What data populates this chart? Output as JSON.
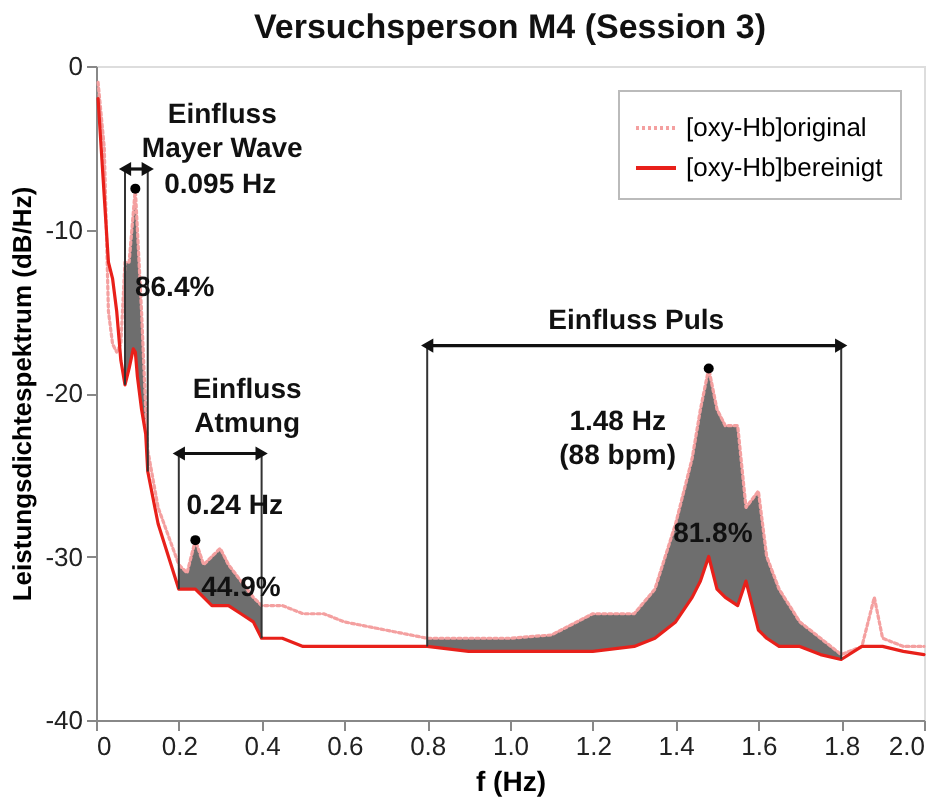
{
  "chart_data": {
    "type": "line",
    "title": "Versuchsperson M4 (Session 3)",
    "xlabel": "f (Hz)",
    "ylabel": "Leistungsdichtespektrum (dB/Hz)",
    "xlim": [
      0,
      2
    ],
    "ylim": [
      -40,
      0
    ],
    "xticks": [
      0,
      0.2,
      0.4,
      0.6,
      0.8,
      {
        "value": 1,
        "label": "1.0"
      },
      1.2,
      1.4,
      1.6,
      1.8,
      {
        "value": 2,
        "label": "2.0"
      }
    ],
    "yticks": [
      -40,
      -30,
      -20,
      -10,
      0
    ],
    "grid": false,
    "legend": "top right",
    "series": [
      {
        "name": "[oxy-Hb]original",
        "line_style": "dotted",
        "color": "#f4a0a0",
        "x": [
          0.005,
          0.02,
          0.03,
          0.04,
          0.05,
          0.06,
          0.07,
          0.08,
          0.09,
          0.095,
          0.1,
          0.11,
          0.12,
          0.125,
          0.15,
          0.2,
          0.22,
          0.24,
          0.26,
          0.28,
          0.3,
          0.32,
          0.35,
          0.38,
          0.4,
          0.45,
          0.5,
          0.55,
          0.6,
          0.7,
          0.8,
          0.9,
          1.0,
          1.1,
          1.2,
          1.3,
          1.35,
          1.4,
          1.44,
          1.46,
          1.48,
          1.5,
          1.52,
          1.55,
          1.57,
          1.6,
          1.62,
          1.65,
          1.7,
          1.75,
          1.8,
          1.85,
          1.88,
          1.9,
          1.95,
          2.0
        ],
        "values": [
          -1,
          -5,
          -15,
          -17,
          -17.5,
          -17,
          -12,
          -12,
          -9,
          -7.5,
          -10,
          -15,
          -21,
          -23.5,
          -27,
          -30.5,
          -31,
          -29,
          -30.5,
          -30,
          -29.5,
          -30.5,
          -31.5,
          -32.5,
          -33,
          -33,
          -33.5,
          -33.5,
          -34,
          -34.5,
          -35,
          -35,
          -35,
          -34.8,
          -33.5,
          -33.5,
          -32,
          -28,
          -24,
          -21,
          -18.5,
          -21,
          -22,
          -22,
          -27,
          -26,
          -30,
          -32,
          -34,
          -35,
          -36,
          -35.5,
          -32.5,
          -35,
          -35.5,
          -35.5
        ]
      },
      {
        "name": "[oxy-Hb]bereinigt",
        "line_style": "solid",
        "color": "#e8201a",
        "x": [
          0.005,
          0.02,
          0.03,
          0.04,
          0.05,
          0.06,
          0.07,
          0.08,
          0.09,
          0.095,
          0.1,
          0.11,
          0.12,
          0.125,
          0.15,
          0.2,
          0.22,
          0.24,
          0.26,
          0.28,
          0.3,
          0.32,
          0.35,
          0.38,
          0.4,
          0.45,
          0.5,
          0.55,
          0.6,
          0.7,
          0.8,
          0.9,
          1.0,
          1.1,
          1.2,
          1.3,
          1.35,
          1.4,
          1.44,
          1.46,
          1.48,
          1.5,
          1.52,
          1.55,
          1.57,
          1.6,
          1.62,
          1.65,
          1.7,
          1.75,
          1.8,
          1.85,
          1.88,
          1.9,
          1.95,
          2.0
        ],
        "values": [
          -2,
          -8,
          -12,
          -13,
          -15,
          -18,
          -19.5,
          -18.5,
          -17.3,
          -17.5,
          -19,
          -21,
          -22.5,
          -24.8,
          -28,
          -32,
          -32,
          -32,
          -32.5,
          -33,
          -33,
          -33,
          -33.5,
          -34,
          -35,
          -35,
          -35.5,
          -35.5,
          -35.5,
          -35.5,
          -35.5,
          -35.8,
          -35.8,
          -35.8,
          -35.8,
          -35.5,
          -35,
          -34,
          -32.5,
          -31.5,
          -30,
          -32,
          -32.5,
          -33,
          -31.5,
          -34.5,
          -35,
          -35.5,
          -35.5,
          -36,
          -36.3,
          -35.5,
          -35.5,
          -35.5,
          -35.8,
          -36
        ],
        "lower": [
          null,
          null,
          null,
          null,
          null,
          null,
          -19.5,
          -18.5,
          -17.3,
          -17.5,
          -19,
          -21,
          -22.5,
          -24.8,
          null,
          -32,
          -32,
          -32,
          -32.5,
          -33,
          -33,
          -33,
          -33.5,
          -34,
          -35,
          null,
          null,
          null,
          null,
          null,
          -35.5,
          -35.8,
          -35.8,
          -35.8,
          -35.8,
          -35.5,
          -35,
          -34,
          -32.5,
          -31.5,
          -30,
          -32,
          -32.5,
          -33,
          -31.5,
          -34.5,
          -35,
          -35.5,
          -35.5,
          -36,
          -36.3,
          null,
          null,
          null,
          null,
          null
        ],
        "upper": [
          null,
          null,
          null,
          null,
          null,
          null,
          -12,
          -12,
          -9,
          -7.5,
          -10,
          -15,
          -21,
          -23.5,
          null,
          -30.5,
          -31,
          -29,
          -30.5,
          -30,
          -29.5,
          -30.5,
          -31.5,
          -32.5,
          -33,
          null,
          null,
          null,
          null,
          null,
          -35,
          -35,
          -35,
          -34.8,
          -33.5,
          -33.5,
          -32,
          -28,
          -24,
          -21,
          -18.5,
          -21,
          -22,
          -22,
          -27,
          -26,
          -30,
          -32,
          -34,
          -35,
          -36,
          null,
          null,
          null,
          null,
          null
        ]
      },
      {
        "type": "scatter",
        "color": "#000000",
        "marker": "circle",
        "x": [
          0.095,
          0.24,
          1.48
        ],
        "values": [
          -7.5,
          -29,
          -18.5
        ]
      }
    ],
    "annotations": [
      "Einfluss\nMayer Wave",
      "0.095 Hz",
      "86.4%",
      "Einfluss\nAtmung",
      "0.24 Hz",
      "44.9%",
      "Einfluss Puls",
      "1.48 Hz\n(88 bpm)",
      "81.8%"
    ]
  }
}
